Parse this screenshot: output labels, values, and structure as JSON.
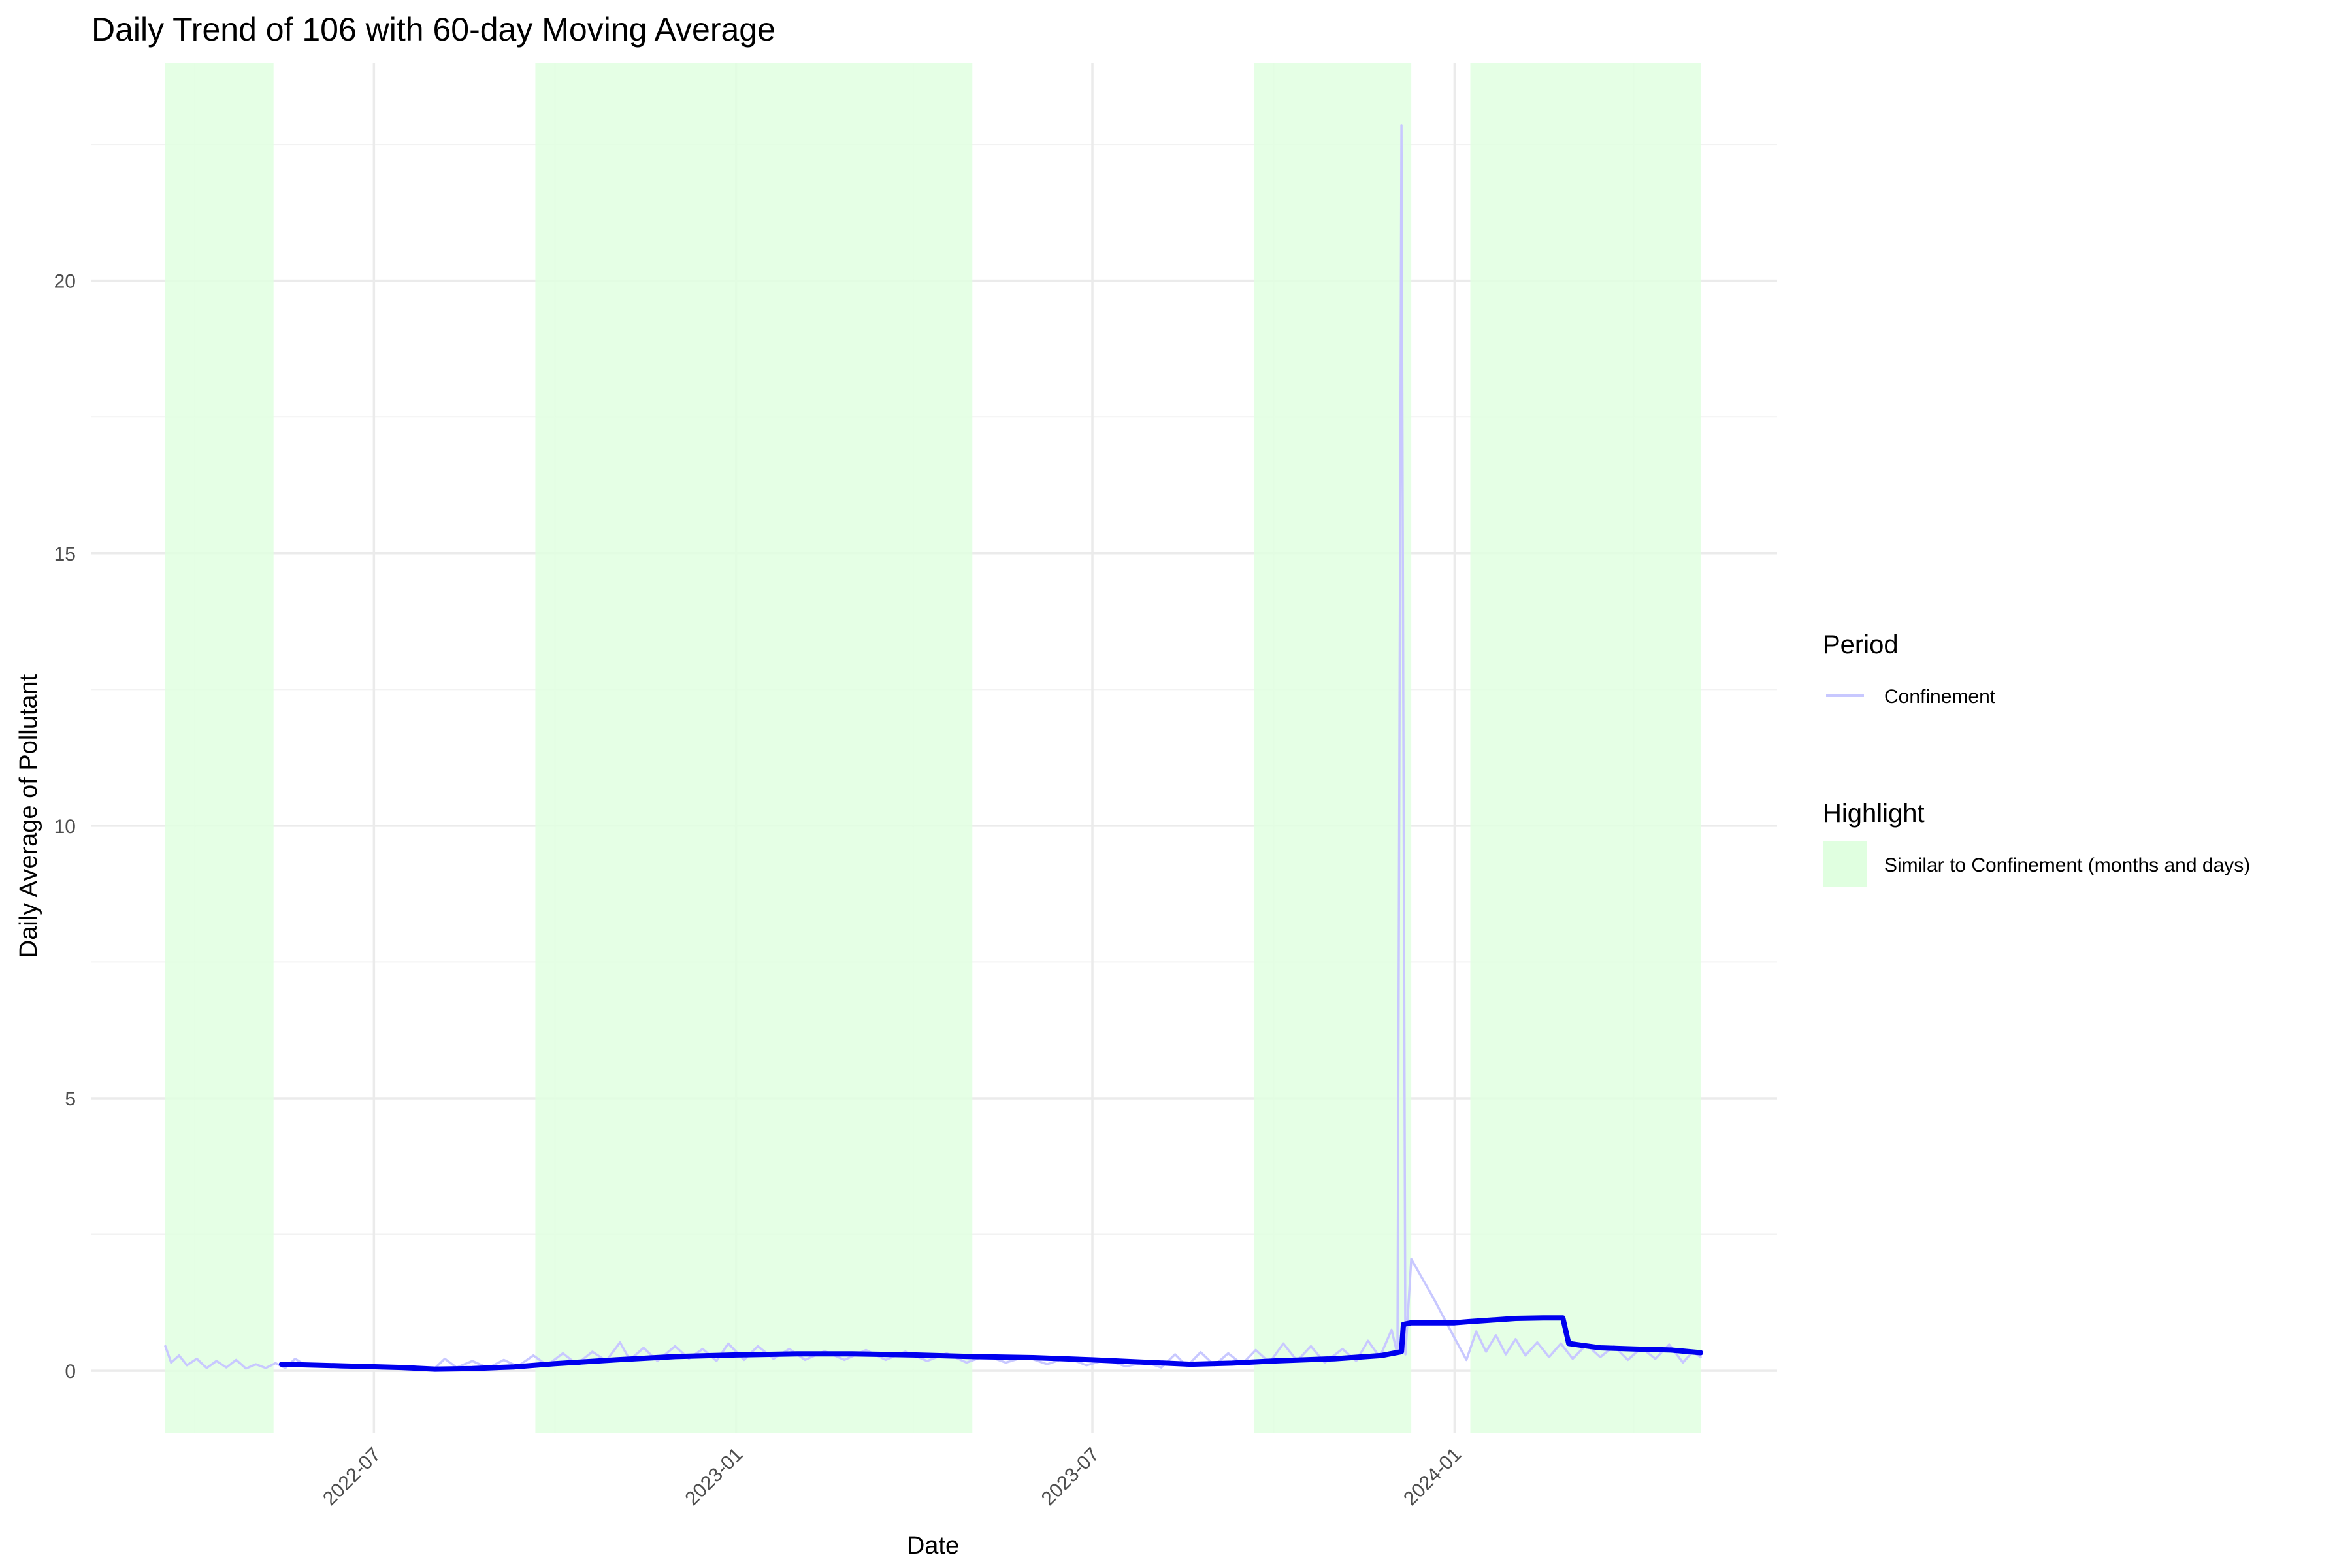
{
  "chart_data": {
    "type": "line",
    "title": "Daily Trend of 106 with 60-day Moving Average",
    "xlabel": "Date",
    "ylabel": "Daily Average of Pollutant",
    "x_axis": {
      "type": "date",
      "range": [
        "2022-03-17",
        "2024-05-05"
      ],
      "tick_labels": [
        "2022-07",
        "2023-01",
        "2023-07",
        "2024-01"
      ],
      "tick_values": [
        "2022-07-01",
        "2023-01-01",
        "2023-07-01",
        "2024-01-01"
      ],
      "minor_ticks": [
        "2022-04-01",
        "2022-10-01",
        "2023-04-01",
        "2023-10-01",
        "2024-04-01"
      ],
      "label_rotation": -45
    },
    "y_axis": {
      "range": [
        -1.15,
        24.0
      ],
      "tick_values": [
        0,
        5,
        10,
        15,
        20
      ],
      "tick_labels": [
        "0",
        "5",
        "10",
        "15",
        "20"
      ],
      "minor_ticks": [
        2.5,
        7.5,
        12.5,
        17.5,
        22.5
      ]
    },
    "grid": true,
    "legend_position": "right",
    "highlights": [
      {
        "start": "2022-03-17",
        "end": "2022-05-11"
      },
      {
        "start": "2022-09-21",
        "end": "2023-05-01"
      },
      {
        "start": "2023-09-21",
        "end": "2023-12-10"
      },
      {
        "start": "2024-01-09",
        "end": "2024-05-05"
      }
    ],
    "highlight_color": "#e0ffe0",
    "series": [
      {
        "name": "Confinement",
        "legend_group": "Period",
        "color": "#c8c8ff",
        "style": "thin",
        "points": [
          [
            "2022-03-17",
            0.45
          ],
          [
            "2022-03-20",
            0.15
          ],
          [
            "2022-03-24",
            0.28
          ],
          [
            "2022-03-28",
            0.1
          ],
          [
            "2022-04-02",
            0.22
          ],
          [
            "2022-04-07",
            0.05
          ],
          [
            "2022-04-12",
            0.18
          ],
          [
            "2022-04-17",
            0.06
          ],
          [
            "2022-04-22",
            0.2
          ],
          [
            "2022-04-27",
            0.04
          ],
          [
            "2022-05-02",
            0.12
          ],
          [
            "2022-05-07",
            0.05
          ],
          [
            "2022-05-12",
            0.14
          ],
          [
            "2022-05-17",
            0.05
          ],
          [
            "2022-05-22",
            0.22
          ],
          [
            "2022-05-28",
            0.08
          ],
          [
            "2022-06-05",
            0.12
          ],
          [
            "2022-06-15",
            0.05
          ],
          [
            "2022-06-25",
            0.1
          ],
          [
            "2022-07-05",
            0.04
          ],
          [
            "2022-07-15",
            0.08
          ],
          [
            "2022-07-25",
            0.02
          ],
          [
            "2022-08-01",
            0.05
          ],
          [
            "2022-08-06",
            0.22
          ],
          [
            "2022-08-12",
            0.06
          ],
          [
            "2022-08-20",
            0.18
          ],
          [
            "2022-08-28",
            0.05
          ],
          [
            "2022-09-05",
            0.2
          ],
          [
            "2022-09-12",
            0.08
          ],
          [
            "2022-09-20",
            0.28
          ],
          [
            "2022-09-27",
            0.1
          ],
          [
            "2022-10-05",
            0.32
          ],
          [
            "2022-10-12",
            0.12
          ],
          [
            "2022-10-20",
            0.35
          ],
          [
            "2022-10-27",
            0.18
          ],
          [
            "2022-11-03",
            0.52
          ],
          [
            "2022-11-08",
            0.2
          ],
          [
            "2022-11-15",
            0.42
          ],
          [
            "2022-11-22",
            0.18
          ],
          [
            "2022-12-01",
            0.45
          ],
          [
            "2022-12-08",
            0.22
          ],
          [
            "2022-12-15",
            0.4
          ],
          [
            "2022-12-22",
            0.18
          ],
          [
            "2022-12-28",
            0.5
          ],
          [
            "2023-01-05",
            0.2
          ],
          [
            "2023-01-12",
            0.45
          ],
          [
            "2023-01-20",
            0.22
          ],
          [
            "2023-01-28",
            0.4
          ],
          [
            "2023-02-05",
            0.2
          ],
          [
            "2023-02-15",
            0.36
          ],
          [
            "2023-02-25",
            0.2
          ],
          [
            "2023-03-08",
            0.38
          ],
          [
            "2023-03-18",
            0.2
          ],
          [
            "2023-03-28",
            0.35
          ],
          [
            "2023-04-08",
            0.18
          ],
          [
            "2023-04-18",
            0.32
          ],
          [
            "2023-04-28",
            0.15
          ],
          [
            "2023-05-08",
            0.28
          ],
          [
            "2023-05-18",
            0.15
          ],
          [
            "2023-05-28",
            0.26
          ],
          [
            "2023-06-08",
            0.12
          ],
          [
            "2023-06-18",
            0.24
          ],
          [
            "2023-06-28",
            0.1
          ],
          [
            "2023-07-08",
            0.2
          ],
          [
            "2023-07-18",
            0.08
          ],
          [
            "2023-07-28",
            0.16
          ],
          [
            "2023-08-05",
            0.06
          ],
          [
            "2023-08-12",
            0.3
          ],
          [
            "2023-08-18",
            0.08
          ],
          [
            "2023-08-25",
            0.34
          ],
          [
            "2023-09-01",
            0.1
          ],
          [
            "2023-09-08",
            0.32
          ],
          [
            "2023-09-15",
            0.12
          ],
          [
            "2023-09-22",
            0.38
          ],
          [
            "2023-09-29",
            0.15
          ],
          [
            "2023-10-06",
            0.5
          ],
          [
            "2023-10-13",
            0.18
          ],
          [
            "2023-10-20",
            0.45
          ],
          [
            "2023-10-27",
            0.15
          ],
          [
            "2023-11-05",
            0.4
          ],
          [
            "2023-11-12",
            0.18
          ],
          [
            "2023-11-18",
            0.55
          ],
          [
            "2023-11-24",
            0.25
          ],
          [
            "2023-11-30",
            0.75
          ],
          [
            "2023-12-03",
            0.3
          ],
          [
            "2023-12-05",
            22.85
          ],
          [
            "2023-12-07",
            0.3
          ],
          [
            "2023-12-10",
            2.05
          ],
          [
            "2023-12-21",
            1.35
          ],
          [
            "2024-01-01",
            0.6
          ],
          [
            "2024-01-07",
            0.2
          ],
          [
            "2024-01-12",
            0.72
          ],
          [
            "2024-01-17",
            0.35
          ],
          [
            "2024-01-22",
            0.65
          ],
          [
            "2024-01-27",
            0.3
          ],
          [
            "2024-02-01",
            0.58
          ],
          [
            "2024-02-06",
            0.28
          ],
          [
            "2024-02-12",
            0.52
          ],
          [
            "2024-02-18",
            0.25
          ],
          [
            "2024-02-24",
            0.5
          ],
          [
            "2024-03-01",
            0.22
          ],
          [
            "2024-03-08",
            0.48
          ],
          [
            "2024-03-15",
            0.25
          ],
          [
            "2024-03-22",
            0.45
          ],
          [
            "2024-03-29",
            0.2
          ],
          [
            "2024-04-05",
            0.42
          ],
          [
            "2024-04-12",
            0.22
          ],
          [
            "2024-04-19",
            0.48
          ],
          [
            "2024-04-26",
            0.15
          ],
          [
            "2024-05-01",
            0.35
          ],
          [
            "2024-05-05",
            0.25
          ]
        ]
      },
      {
        "name": "",
        "color": "#0000ee",
        "style": "thick",
        "points": [
          [
            "2022-05-15",
            0.12
          ],
          [
            "2022-06-15",
            0.09
          ],
          [
            "2022-07-15",
            0.06
          ],
          [
            "2022-08-01",
            0.03
          ],
          [
            "2022-08-20",
            0.04
          ],
          [
            "2022-09-10",
            0.07
          ],
          [
            "2022-10-01",
            0.13
          ],
          [
            "2022-11-01",
            0.2
          ],
          [
            "2022-12-01",
            0.26
          ],
          [
            "2023-01-01",
            0.29
          ],
          [
            "2023-02-01",
            0.31
          ],
          [
            "2023-03-01",
            0.31
          ],
          [
            "2023-04-01",
            0.29
          ],
          [
            "2023-05-01",
            0.26
          ],
          [
            "2023-06-01",
            0.24
          ],
          [
            "2023-07-01",
            0.2
          ],
          [
            "2023-08-01",
            0.15
          ],
          [
            "2023-08-20",
            0.12
          ],
          [
            "2023-09-10",
            0.14
          ],
          [
            "2023-10-01",
            0.18
          ],
          [
            "2023-11-01",
            0.22
          ],
          [
            "2023-11-25",
            0.28
          ],
          [
            "2023-12-05",
            0.35
          ],
          [
            "2023-12-06",
            0.85
          ],
          [
            "2023-12-10",
            0.88
          ],
          [
            "2023-12-25",
            0.88
          ],
          [
            "2024-01-01",
            0.88
          ],
          [
            "2024-01-08",
            0.9
          ],
          [
            "2024-01-20",
            0.93
          ],
          [
            "2024-02-01",
            0.96
          ],
          [
            "2024-02-15",
            0.97
          ],
          [
            "2024-02-25",
            0.97
          ],
          [
            "2024-02-28",
            0.5
          ],
          [
            "2024-03-15",
            0.42
          ],
          [
            "2024-04-01",
            0.4
          ],
          [
            "2024-04-20",
            0.38
          ],
          [
            "2024-05-05",
            0.33
          ]
        ]
      }
    ],
    "legend": [
      {
        "title": "Period",
        "entries": [
          {
            "label": "Confinement",
            "kind": "line",
            "color": "#c8c8ff"
          }
        ]
      },
      {
        "title": "Highlight",
        "entries": [
          {
            "label": "Similar to Confinement (months and days)",
            "kind": "fill",
            "color": "#e0ffe0"
          }
        ]
      }
    ]
  }
}
